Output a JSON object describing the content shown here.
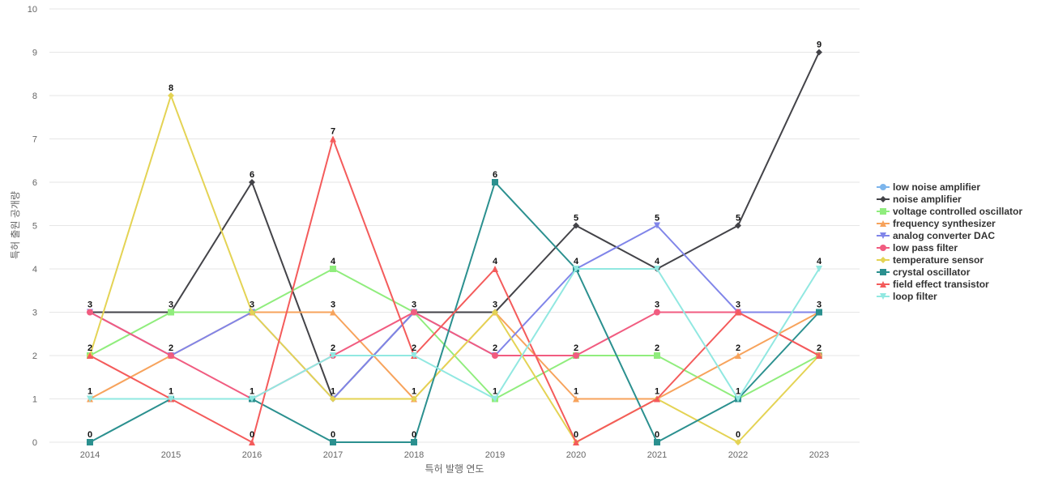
{
  "chart_data": {
    "type": "line",
    "title": "",
    "xlabel": "특허 발행 연도",
    "ylabel": "특허 출원 공개량",
    "x": [
      "2014",
      "2015",
      "2016",
      "2017",
      "2018",
      "2019",
      "2020",
      "2021",
      "2022",
      "2023"
    ],
    "ylim": [
      0,
      10
    ],
    "yticks": [
      0,
      1,
      2,
      3,
      4,
      5,
      6,
      7,
      8,
      9,
      10
    ],
    "grid": true,
    "legend_position": "right",
    "series": [
      {
        "name": "low noise amplifier",
        "color": "#7cb5ec",
        "marker": "circle",
        "values": [
          null,
          null,
          null,
          null,
          null,
          null,
          null,
          null,
          null,
          null
        ]
      },
      {
        "name": "noise amplifier",
        "color": "#434348",
        "marker": "diamond",
        "values": [
          3,
          3,
          6,
          1,
          3,
          3,
          5,
          4,
          5,
          9
        ]
      },
      {
        "name": "voltage controlled oscillator",
        "color": "#90ed7d",
        "marker": "square",
        "values": [
          2,
          3,
          3,
          4,
          3,
          1,
          2,
          2,
          1,
          2
        ]
      },
      {
        "name": "frequency synthesizer",
        "color": "#f7a35c",
        "marker": "triangle",
        "values": [
          1,
          2,
          3,
          3,
          1,
          3,
          1,
          1,
          2,
          3
        ]
      },
      {
        "name": "analog converter DAC",
        "color": "#8085e9",
        "marker": "triangle-down",
        "values": [
          3,
          2,
          3,
          1,
          3,
          2,
          4,
          5,
          3,
          3
        ]
      },
      {
        "name": "low pass filter",
        "color": "#f15c80",
        "marker": "circle",
        "values": [
          3,
          2,
          1,
          2,
          3,
          2,
          2,
          3,
          3,
          2
        ]
      },
      {
        "name": "temperature sensor",
        "color": "#e4d354",
        "marker": "diamond",
        "values": [
          2,
          8,
          3,
          1,
          1,
          3,
          0,
          1,
          0,
          2
        ]
      },
      {
        "name": "crystal oscillator",
        "color": "#2b908f",
        "marker": "square",
        "values": [
          0,
          1,
          1,
          0,
          0,
          6,
          4,
          0,
          1,
          3
        ]
      },
      {
        "name": "field effect transistor",
        "color": "#f45b5b",
        "marker": "triangle",
        "values": [
          2,
          1,
          0,
          7,
          2,
          4,
          0,
          1,
          3,
          2
        ]
      },
      {
        "name": "loop filter",
        "color": "#91e8e1",
        "marker": "triangle-down",
        "values": [
          1,
          1,
          1,
          2,
          2,
          1,
          4,
          4,
          1,
          4
        ]
      }
    ],
    "data_labels": [
      {
        "x": "2014",
        "y": 3,
        "text": "3"
      },
      {
        "x": "2014",
        "y": 2,
        "text": "2"
      },
      {
        "x": "2014",
        "y": 1,
        "text": "1"
      },
      {
        "x": "2014",
        "y": 0,
        "text": "0"
      },
      {
        "x": "2015",
        "y": 8,
        "text": "8"
      },
      {
        "x": "2015",
        "y": 3,
        "text": "3"
      },
      {
        "x": "2015",
        "y": 2,
        "text": "2"
      },
      {
        "x": "2015",
        "y": 1,
        "text": "1"
      },
      {
        "x": "2016",
        "y": 6,
        "text": "6"
      },
      {
        "x": "2016",
        "y": 3,
        "text": "3"
      },
      {
        "x": "2016",
        "y": 1,
        "text": "1"
      },
      {
        "x": "2016",
        "y": 0,
        "text": "0"
      },
      {
        "x": "2017",
        "y": 7,
        "text": "7"
      },
      {
        "x": "2017",
        "y": 4,
        "text": "4"
      },
      {
        "x": "2017",
        "y": 3,
        "text": "3"
      },
      {
        "x": "2017",
        "y": 2,
        "text": "2"
      },
      {
        "x": "2017",
        "y": 1,
        "text": "1"
      },
      {
        "x": "2017",
        "y": 0,
        "text": "0"
      },
      {
        "x": "2018",
        "y": 3,
        "text": "3"
      },
      {
        "x": "2018",
        "y": 2,
        "text": "2"
      },
      {
        "x": "2018",
        "y": 1,
        "text": "1"
      },
      {
        "x": "2018",
        "y": 0,
        "text": "0"
      },
      {
        "x": "2019",
        "y": 6,
        "text": "6"
      },
      {
        "x": "2019",
        "y": 4,
        "text": "4"
      },
      {
        "x": "2019",
        "y": 3,
        "text": "3"
      },
      {
        "x": "2019",
        "y": 2,
        "text": "2"
      },
      {
        "x": "2019",
        "y": 1,
        "text": "1"
      },
      {
        "x": "2020",
        "y": 5,
        "text": "5"
      },
      {
        "x": "2020",
        "y": 4,
        "text": "4"
      },
      {
        "x": "2020",
        "y": 2,
        "text": "2"
      },
      {
        "x": "2020",
        "y": 1,
        "text": "1"
      },
      {
        "x": "2020",
        "y": 0,
        "text": "0"
      },
      {
        "x": "2021",
        "y": 5,
        "text": "5"
      },
      {
        "x": "2021",
        "y": 4,
        "text": "4"
      },
      {
        "x": "2021",
        "y": 3,
        "text": "3"
      },
      {
        "x": "2021",
        "y": 2,
        "text": "2"
      },
      {
        "x": "2021",
        "y": 1,
        "text": "1"
      },
      {
        "x": "2021",
        "y": 0,
        "text": "0"
      },
      {
        "x": "2022",
        "y": 5,
        "text": "5"
      },
      {
        "x": "2022",
        "y": 3,
        "text": "3"
      },
      {
        "x": "2022",
        "y": 2,
        "text": "2"
      },
      {
        "x": "2022",
        "y": 1,
        "text": "1"
      },
      {
        "x": "2022",
        "y": 0,
        "text": "0"
      },
      {
        "x": "2023",
        "y": 9,
        "text": "9"
      },
      {
        "x": "2023",
        "y": 4,
        "text": "4"
      },
      {
        "x": "2023",
        "y": 3,
        "text": "3"
      },
      {
        "x": "2023",
        "y": 2,
        "text": "2"
      }
    ]
  }
}
